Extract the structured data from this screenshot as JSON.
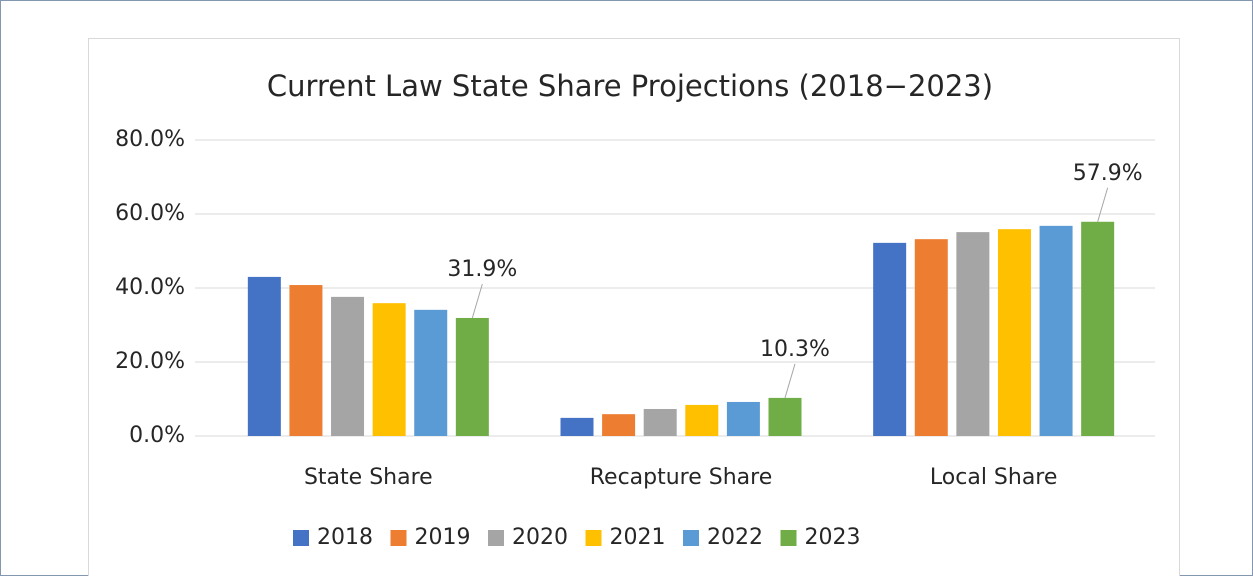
{
  "chart_data": {
    "type": "bar",
    "title": "Current Law State Share Projections (2018−2023)",
    "categories": [
      "State Share",
      "Recapture Share",
      "Local Share"
    ],
    "series": [
      {
        "name": "2018",
        "color": "#4472c4",
        "values": [
          43.0,
          4.9,
          52.2
        ]
      },
      {
        "name": "2019",
        "color": "#ed7d31",
        "values": [
          40.8,
          5.9,
          53.2
        ]
      },
      {
        "name": "2020",
        "color": "#a5a5a5",
        "values": [
          37.6,
          7.3,
          55.1
        ]
      },
      {
        "name": "2021",
        "color": "#ffc000",
        "values": [
          35.9,
          8.4,
          55.9
        ]
      },
      {
        "name": "2022",
        "color": "#5b9bd5",
        "values": [
          34.1,
          9.2,
          56.8
        ]
      },
      {
        "name": "2023",
        "color": "#70ad47",
        "values": [
          31.9,
          10.3,
          57.9
        ],
        "value_labels": [
          "31.9%",
          "10.3%",
          "57.9%"
        ]
      }
    ],
    "ylim": [
      0,
      80
    ],
    "yticks": [
      {
        "value": 0,
        "label": "0.0%"
      },
      {
        "value": 20,
        "label": "20.0%"
      },
      {
        "value": 40,
        "label": "40.0%"
      },
      {
        "value": 60,
        "label": "60.0%"
      },
      {
        "value": 80,
        "label": "80.0%"
      }
    ],
    "grid": true,
    "legend": "bottom"
  }
}
